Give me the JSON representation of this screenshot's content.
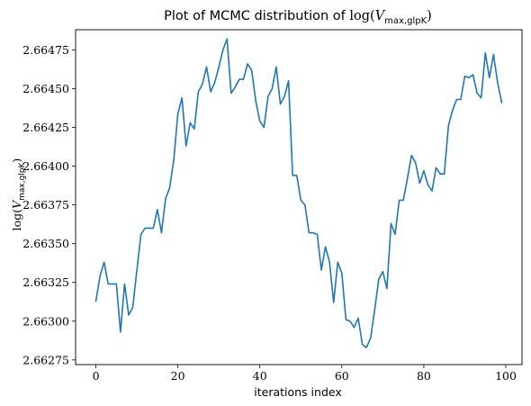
{
  "chart_data": {
    "type": "line",
    "title": {
      "prefix": "Plot of MCMC distribution of ",
      "func": "log(",
      "var": "V",
      "subscript": "max,glpK",
      "close": ")"
    },
    "xlabel": "iterations index",
    "ylabel": {
      "func": "log(",
      "var": "V",
      "subscript": "max,glpK",
      "close": ")"
    },
    "xlim": [
      -4.95,
      103.95
    ],
    "ylim": [
      2.66272,
      2.66488
    ],
    "xticks": [
      0,
      20,
      40,
      60,
      80,
      100
    ],
    "xtick_labels": [
      "0",
      "20",
      "40",
      "60",
      "80",
      "100"
    ],
    "yticks": [
      2.66275,
      2.663,
      2.66325,
      2.6635,
      2.66375,
      2.664,
      2.66425,
      2.6645,
      2.66475
    ],
    "ytick_labels": [
      "2.66275",
      "2.66300",
      "2.66325",
      "2.66350",
      "2.66375",
      "2.66400",
      "2.66425",
      "2.66450",
      "2.66475"
    ],
    "grid": false,
    "series": [
      {
        "name": "log(V_max,glpK)",
        "color": "#1f77b4",
        "x": [
          0,
          1,
          2,
          3,
          4,
          5,
          6,
          7,
          8,
          9,
          10,
          11,
          12,
          13,
          14,
          15,
          16,
          17,
          18,
          19,
          20,
          21,
          22,
          23,
          24,
          25,
          26,
          27,
          28,
          29,
          30,
          31,
          32,
          33,
          34,
          35,
          36,
          37,
          38,
          39,
          40,
          41,
          42,
          43,
          44,
          45,
          46,
          47,
          48,
          49,
          50,
          51,
          52,
          53,
          54,
          55,
          56,
          57,
          58,
          59,
          60,
          61,
          62,
          63,
          64,
          65,
          66,
          67,
          68,
          69,
          70,
          71,
          72,
          73,
          74,
          75,
          76,
          77,
          78,
          79,
          80,
          81,
          82,
          83,
          84,
          85,
          86,
          87,
          88,
          89,
          90,
          91,
          92,
          93,
          94,
          95,
          96,
          97,
          98,
          99
        ],
        "values": [
          2.66313,
          2.66329,
          2.66338,
          2.66324,
          2.66324,
          2.66324,
          2.66293,
          2.66324,
          2.66304,
          2.66309,
          2.66333,
          2.66356,
          2.6636,
          2.6636,
          2.6636,
          2.66372,
          2.66357,
          2.66379,
          2.66386,
          2.66404,
          2.66434,
          2.66444,
          2.66413,
          2.66428,
          2.66424,
          2.66448,
          2.66453,
          2.66464,
          2.66448,
          2.66454,
          2.66464,
          2.66475,
          2.66482,
          2.66447,
          2.66451,
          2.66456,
          2.66456,
          2.66466,
          2.66462,
          2.66442,
          2.66429,
          2.66425,
          2.66445,
          2.6645,
          2.66464,
          2.6644,
          2.66445,
          2.66455,
          2.66394,
          2.66394,
          2.66378,
          2.66375,
          2.66357,
          2.66357,
          2.66356,
          2.66333,
          2.66348,
          2.66338,
          2.66312,
          2.66338,
          2.66331,
          2.66301,
          2.663,
          2.66296,
          2.66302,
          2.66285,
          2.66283,
          2.66289,
          2.66307,
          2.66327,
          2.66332,
          2.66321,
          2.66363,
          2.66356,
          2.66378,
          2.66378,
          2.66392,
          2.66407,
          2.66402,
          2.66389,
          2.66397,
          2.66388,
          2.66384,
          2.66399,
          2.66395,
          2.66395,
          2.66426,
          2.66436,
          2.66443,
          2.66443,
          2.66458,
          2.66457,
          2.66459,
          2.66447,
          2.66444,
          2.66473,
          2.66457,
          2.66472,
          2.66454,
          2.66441
        ]
      }
    ]
  }
}
